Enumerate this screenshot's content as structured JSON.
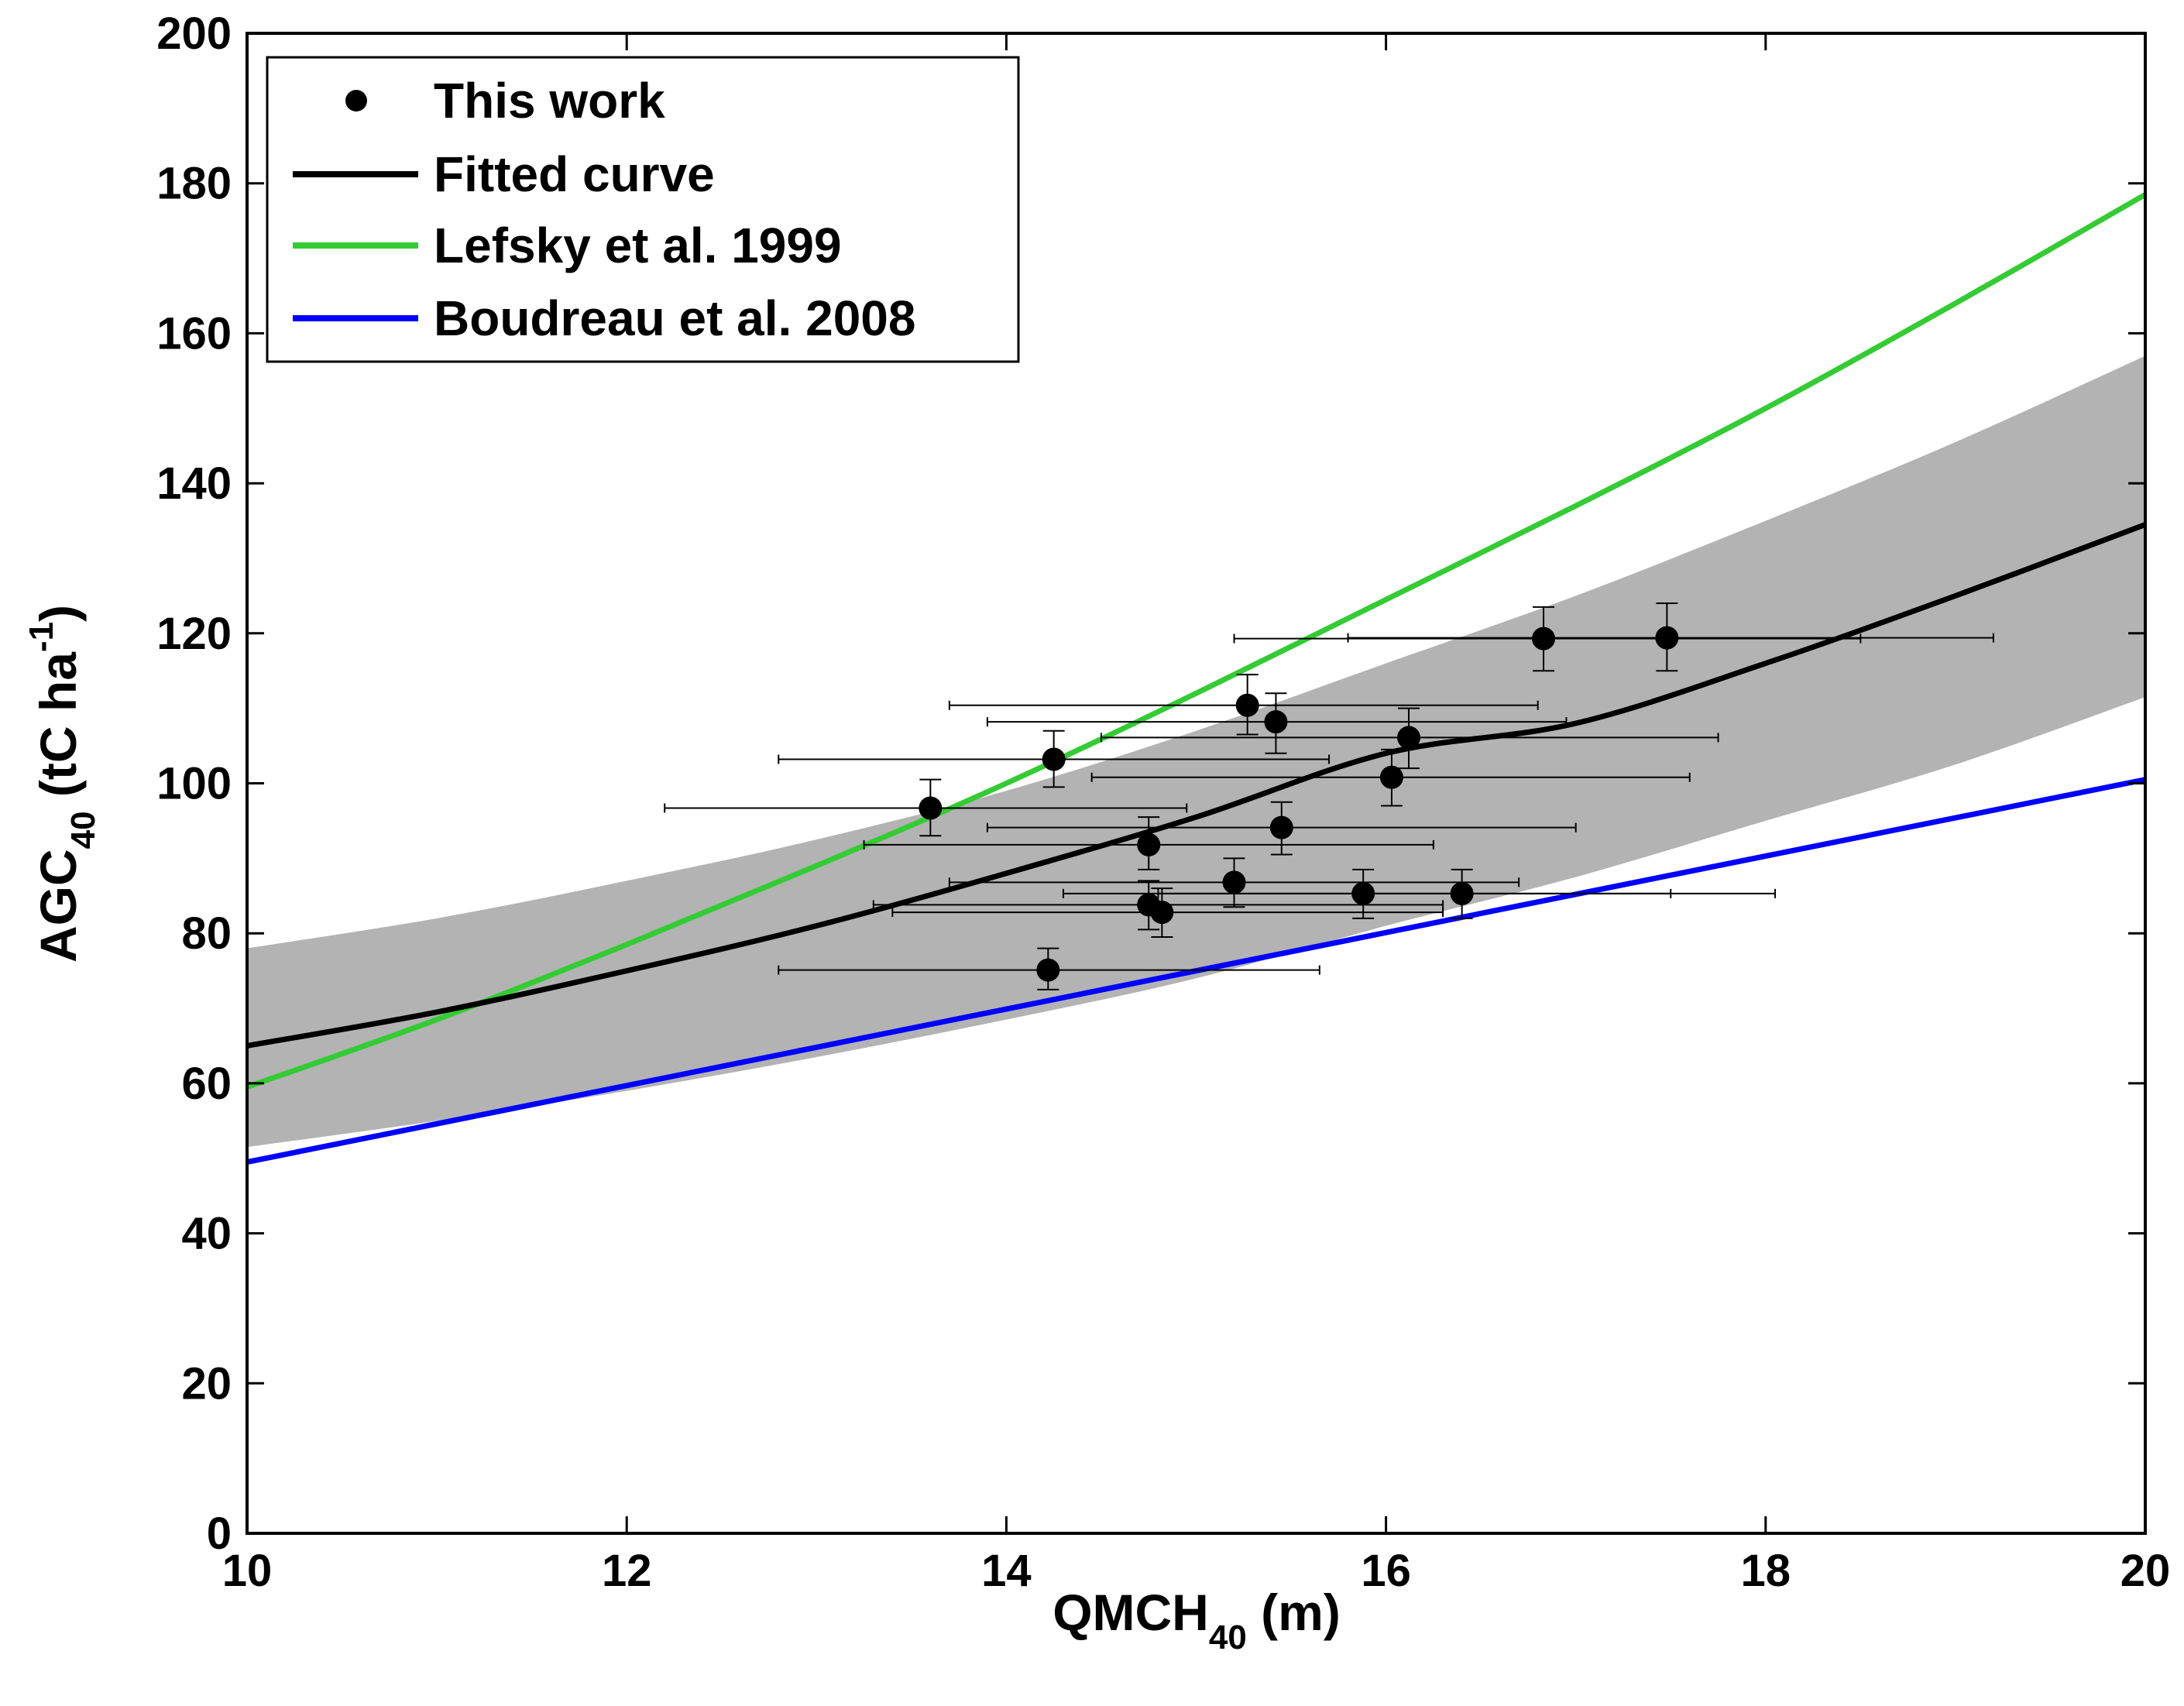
{
  "chart_data": {
    "type": "scatter",
    "title": "",
    "xlabel": {
      "main": "QMCH",
      "sub": "40",
      "rest": " (m)"
    },
    "ylabel": {
      "main": "AGC",
      "sub": "40",
      "rest": " (tC ha",
      "sup": "-1",
      "close": ")"
    },
    "xlim": [
      10,
      20
    ],
    "ylim": [
      0,
      200
    ],
    "x_ticks": [
      "10",
      "12",
      "14",
      "16",
      "18",
      "20"
    ],
    "y_ticks": [
      "0",
      "20",
      "40",
      "60",
      "80",
      "100",
      "120",
      "140",
      "160",
      "180",
      "200"
    ],
    "grid": false,
    "legend_position": "top-left",
    "legend": [
      {
        "label": "This work",
        "kind": "marker",
        "color": "#000000"
      },
      {
        "label": "Fitted curve",
        "kind": "line",
        "color": "#000000"
      },
      {
        "label": "Lefsky et al. 1999",
        "kind": "line",
        "color": "#33cc33"
      },
      {
        "label": "Boudreau et al. 2008",
        "kind": "line",
        "color": "#0000ff"
      }
    ],
    "band": {
      "color": "#b3b3b3",
      "x": [
        10,
        11,
        12,
        13,
        14,
        15,
        16,
        17,
        18,
        19,
        20
      ],
      "lower": [
        51.5,
        55,
        59,
        63.5,
        68.5,
        74,
        81,
        87.5,
        95,
        102.5,
        111.5
      ],
      "upper": [
        78,
        82,
        87,
        92.5,
        99,
        107,
        116,
        125,
        135,
        145.5,
        157
      ]
    },
    "series": [
      {
        "name": "Fitted curve",
        "color": "#000000",
        "x": [
          10,
          11,
          12,
          13,
          14,
          15,
          16,
          17,
          18,
          19,
          20
        ],
        "y": [
          65,
          69.5,
          75,
          81,
          88,
          95.5,
          104,
          108,
          116,
          125,
          134.5
        ]
      },
      {
        "name": "Lefsky et al. 1999",
        "color": "#33cc33",
        "x": [
          10,
          11,
          12,
          13,
          14,
          15,
          16,
          17,
          18,
          19,
          20
        ],
        "y": [
          59.5,
          68.5,
          78.5,
          89,
          100,
          112,
          124.5,
          137,
          150,
          164,
          178.5
        ]
      },
      {
        "name": "Boudreau et al. 2008",
        "color": "#0000ff",
        "x": [
          10,
          20
        ],
        "y": [
          49.5,
          100.5
        ]
      }
    ],
    "points": [
      {
        "x": 13.6,
        "y": 96.7,
        "xerr": [
          12.2,
          14.95
        ],
        "yerr": [
          93,
          100.5
        ]
      },
      {
        "x": 14.25,
        "y": 103.2,
        "xerr": [
          12.8,
          15.7
        ],
        "yerr": [
          99.5,
          107
        ]
      },
      {
        "x": 14.22,
        "y": 75.1,
        "xerr": [
          12.8,
          15.65
        ],
        "yerr": [
          72.5,
          78
        ]
      },
      {
        "x": 14.75,
        "y": 91.8,
        "xerr": [
          13.25,
          16.25
        ],
        "yerr": [
          88.5,
          95.5
        ]
      },
      {
        "x": 14.75,
        "y": 83.8,
        "xerr": [
          13.3,
          16.3
        ],
        "yerr": [
          80.5,
          87
        ]
      },
      {
        "x": 14.82,
        "y": 82.8,
        "xerr": [
          13.4,
          16.3
        ],
        "yerr": [
          79.5,
          86
        ]
      },
      {
        "x": 15.2,
        "y": 86.8,
        "xerr": [
          13.7,
          16.7
        ],
        "yerr": [
          83.5,
          90
        ]
      },
      {
        "x": 15.27,
        "y": 110.4,
        "xerr": [
          13.7,
          16.8
        ],
        "yerr": [
          106.5,
          114.5
        ]
      },
      {
        "x": 15.42,
        "y": 108.2,
        "xerr": [
          13.9,
          16.95
        ],
        "yerr": [
          104,
          112
        ]
      },
      {
        "x": 15.45,
        "y": 94.1,
        "xerr": [
          13.9,
          17
        ],
        "yerr": [
          90.5,
          97.5
        ]
      },
      {
        "x": 15.88,
        "y": 85.3,
        "xerr": [
          14.3,
          17.5
        ],
        "yerr": [
          82,
          88.5
        ]
      },
      {
        "x": 16.03,
        "y": 100.8,
        "xerr": [
          14.45,
          17.6
        ],
        "yerr": [
          97,
          104.5
        ]
      },
      {
        "x": 16.12,
        "y": 106.1,
        "xerr": [
          14.5,
          17.75
        ],
        "yerr": [
          102,
          110
        ]
      },
      {
        "x": 16.4,
        "y": 85.3,
        "xerr": [
          14.8,
          18.05
        ],
        "yerr": [
          82,
          88.5
        ]
      },
      {
        "x": 16.83,
        "y": 119.3,
        "xerr": [
          15.2,
          18.5
        ],
        "yerr": [
          115,
          123.5
        ]
      },
      {
        "x": 17.48,
        "y": 119.4,
        "xerr": [
          15.8,
          19.2
        ],
        "yerr": [
          115,
          124
        ]
      }
    ]
  }
}
